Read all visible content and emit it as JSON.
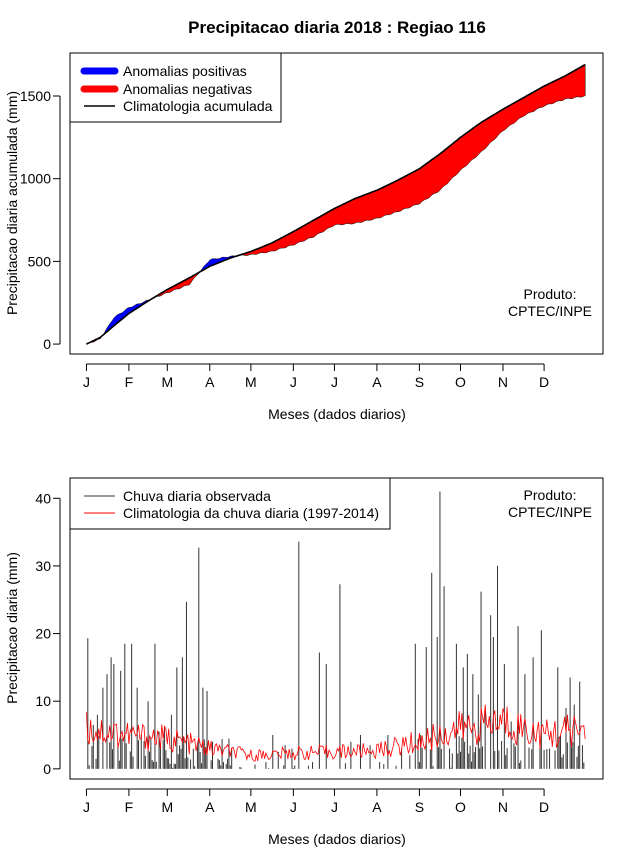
{
  "page_title": "Precipitacao diaria 2018 : Regiao 116",
  "colors": {
    "positive": "#0000ff",
    "negative": "#ff0000",
    "climatology": "#000000",
    "observed": "#333333",
    "clim_daily": "#ff0000"
  },
  "chart_data": [
    {
      "type": "area",
      "title": "Precipitacao diaria 2018 : Regiao 116",
      "xlabel": "Meses (dados diarios)",
      "ylabel": "Precipitacao diaria acumulada (mm)",
      "xlim": [
        -12,
        377
      ],
      "ylim": [
        -60,
        1760
      ],
      "yticks": [
        0,
        500,
        1000,
        1500
      ],
      "month_ticks": [
        "J",
        "F",
        "M",
        "A",
        "M",
        "J",
        "J",
        "A",
        "S",
        "O",
        "N",
        "D"
      ],
      "month_start_days": [
        0,
        31,
        59,
        90,
        120,
        151,
        181,
        212,
        243,
        273,
        304,
        334
      ],
      "legend": [
        "Anomalias positivas",
        "Anomalias negativas",
        "Climatologia acumulada"
      ],
      "legend_position": "top-left",
      "annotation": [
        "Produto:",
        "CPTEC/INPE"
      ],
      "climatology_anchors": {
        "days": [
          0,
          10,
          20,
          31,
          45,
          59,
          75,
          90,
          105,
          120,
          135,
          151,
          166,
          181,
          196,
          212,
          227,
          243,
          258,
          273,
          288,
          304,
          319,
          334,
          349,
          364
        ],
        "values": [
          0,
          40,
          110,
          185,
          260,
          330,
          400,
          470,
          520,
          560,
          610,
          680,
          750,
          820,
          880,
          930,
          990,
          1060,
          1150,
          1250,
          1340,
          1420,
          1490,
          1560,
          1620,
          1690
        ]
      },
      "observed_anchors": {
        "days": [
          0,
          10,
          20,
          31,
          45,
          59,
          75,
          90,
          105,
          120,
          135,
          151,
          166,
          181,
          196,
          212,
          227,
          243,
          258,
          273,
          288,
          304,
          319,
          334,
          349,
          364
        ],
        "values": [
          0,
          30,
          160,
          220,
          265,
          310,
          360,
          510,
          530,
          540,
          560,
          600,
          650,
          720,
          730,
          760,
          800,
          850,
          930,
          1050,
          1160,
          1290,
          1380,
          1440,
          1480,
          1500
        ]
      }
    },
    {
      "type": "bar",
      "xlabel": "Meses (dados diarios)",
      "ylabel": "Precipitacao diaria (mm)",
      "xlim": [
        -12,
        377
      ],
      "ylim": [
        -1.5,
        43
      ],
      "yticks": [
        0,
        10,
        20,
        30,
        40
      ],
      "month_ticks": [
        "J",
        "F",
        "M",
        "A",
        "M",
        "J",
        "J",
        "A",
        "S",
        "O",
        "N",
        "D"
      ],
      "month_start_days": [
        0,
        31,
        59,
        90,
        120,
        151,
        181,
        212,
        243,
        273,
        304,
        334
      ],
      "legend": [
        "Chuva diaria observada",
        "Climatologia da chuva diaria (1997-2014)"
      ],
      "legend_position": "top-left",
      "annotation": [
        "Produto:",
        "CPTEC/INPE"
      ],
      "observed_peaks": {
        "days": [
          1,
          5,
          8,
          12,
          15,
          18,
          20,
          25,
          28,
          33,
          37,
          40,
          45,
          50,
          53,
          57,
          62,
          66,
          70,
          73,
          78,
          82,
          85,
          88,
          92,
          96,
          100,
          105,
          131,
          136,
          140,
          145,
          150,
          155,
          165,
          170,
          175,
          185,
          193,
          200,
          207,
          214,
          220,
          230,
          236,
          240,
          244,
          248,
          252,
          256,
          258,
          261,
          265,
          270,
          275,
          278,
          282,
          286,
          288,
          291,
          295,
          297,
          300,
          305,
          310,
          315,
          320,
          326,
          332,
          338,
          344,
          350,
          353,
          356,
          360,
          362
        ],
        "values": [
          19.3,
          6.5,
          8,
          12,
          14,
          16.5,
          15.5,
          14.5,
          18.5,
          18.5,
          12,
          5,
          10,
          18.5,
          5.5,
          6,
          8,
          15,
          16.5,
          24.7,
          3,
          32.7,
          12,
          11.5,
          4,
          1.5,
          1,
          0.5,
          1,
          5,
          2.5,
          3.5,
          3,
          33.6,
          1,
          17.2,
          15.5,
          27.3,
          4,
          5,
          3.5,
          1,
          5,
          3,
          2,
          18.5,
          5,
          18,
          29,
          19.5,
          41,
          27,
          3,
          18.5,
          15,
          17,
          14,
          11,
          26.2,
          9,
          22.7,
          19.5,
          30,
          15.5,
          7,
          21.1,
          14,
          16.5,
          20.5,
          3,
          15,
          9,
          13.5,
          9.5,
          12.9,
          3.5
        ]
      },
      "climatology_daily_anchors": {
        "days": [
          0,
          31,
          59,
          90,
          120,
          151,
          181,
          212,
          243,
          273,
          304,
          334,
          364
        ],
        "values": [
          6,
          5,
          4.5,
          3,
          2,
          2.3,
          2.5,
          2.7,
          4,
          6,
          7,
          5,
          6
        ]
      }
    }
  ]
}
